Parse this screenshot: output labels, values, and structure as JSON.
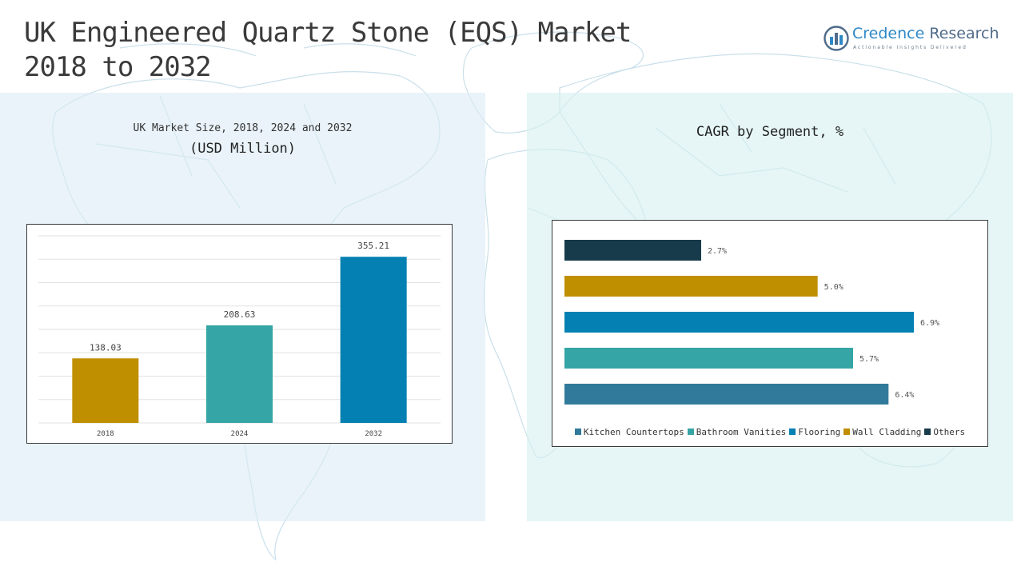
{
  "header": {
    "title_line1": "UK Engineered Quartz Stone (EQS) Market",
    "title_line2": "2018 to 2032"
  },
  "logo": {
    "name_part1": "Credence",
    "name_part2": "Research",
    "tagline": "Actionable Insights Delivered"
  },
  "left_panel": {
    "title_line1": "UK Market Size, 2018, 2024 and 2032",
    "title_line2": "(USD Million)"
  },
  "right_panel": {
    "title": "CAGR by Segment, %"
  },
  "colors": {
    "gold": "#c08f00",
    "teal": "#35a5a5",
    "blue": "#0580b2",
    "steel": "#317a9c",
    "navy": "#183b4b",
    "left_panel_bg": "#dcecf6",
    "right_panel_bg": "#d6f0f0"
  },
  "chart_data": [
    {
      "type": "bar",
      "categories": [
        "2018",
        "2024",
        "2032"
      ],
      "values": [
        138.03,
        208.63,
        355.21
      ],
      "value_labels": [
        "138.03",
        "208.63",
        "355.21"
      ],
      "colors": [
        "#c08f00",
        "#35a5a5",
        "#0580b2"
      ],
      "title": "UK Market Size, 2018, 2024 and 2032",
      "ylabel": "(USD Million)",
      "ylim": [
        0,
        400
      ],
      "grid": true
    },
    {
      "type": "bar",
      "orientation": "horizontal",
      "categories": [
        "Kitchen Countertops",
        "Bathroom Vanities",
        "Flooring",
        "Wall Cladding",
        "Others"
      ],
      "values": [
        6.4,
        5.7,
        6.9,
        5.0,
        2.7
      ],
      "value_labels": [
        "6.4%",
        "5.7%",
        "6.9%",
        "5.0%",
        "2.7%"
      ],
      "colors": [
        "#317a9c",
        "#35a5a5",
        "#0580b2",
        "#c08f00",
        "#183b4b"
      ],
      "title": "CAGR by Segment, %",
      "xlim": [
        0,
        7.2
      ],
      "legend_position": "bottom",
      "grid": false
    }
  ]
}
